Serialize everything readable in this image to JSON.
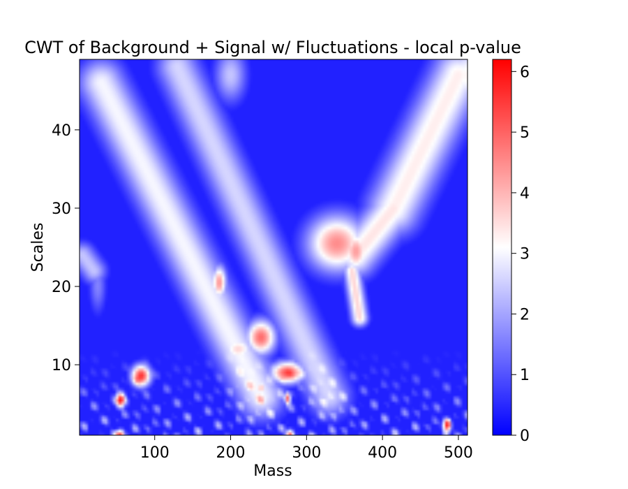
{
  "chart_data": {
    "type": "heatmap",
    "title": "CWT of Background + Signal w/ Fluctuations - local p-value",
    "xlabel": "Mass",
    "ylabel": "Scales",
    "xlim": [
      1,
      512
    ],
    "ylim": [
      1,
      49
    ],
    "x_ticks": [
      100,
      200,
      300,
      400,
      500
    ],
    "y_ticks": [
      10,
      20,
      30,
      40
    ],
    "colorbar": {
      "range": [
        0,
        6.2
      ],
      "ticks": [
        0,
        1,
        2,
        3,
        4,
        5,
        6
      ],
      "colormap": [
        "#0000ff",
        "#ffffff",
        "#ff0000"
      ],
      "colormap_center": 3.1
    },
    "background_level": 0.4,
    "grid": false,
    "features": [
      {
        "type": "ridge",
        "from": [
          30,
          46
        ],
        "to": [
          240,
          6
        ],
        "value": 3.0,
        "width": 22
      },
      {
        "type": "ridge",
        "from": [
          130,
          48
        ],
        "to": [
          330,
          6
        ],
        "value": 2.6,
        "width": 20
      },
      {
        "type": "ridge",
        "from": [
          500,
          47
        ],
        "to": [
          415,
          30
        ],
        "value": 3.3,
        "width": 25
      },
      {
        "type": "ridge",
        "from": [
          415,
          30
        ],
        "to": [
          365,
          24
        ],
        "value": 3.4,
        "width": 20
      },
      {
        "type": "ridge",
        "from": [
          360,
          22
        ],
        "to": [
          370,
          16
        ],
        "value": 3.6,
        "width": 8
      },
      {
        "type": "ridge",
        "from": [
          5,
          24
        ],
        "to": [
          20,
          22
        ],
        "value": 2.4,
        "width": 12
      },
      {
        "type": "blob",
        "x": 340,
        "y": 25.5,
        "sx": 28,
        "sy": 2.6,
        "value": 4.5
      },
      {
        "type": "blob",
        "x": 365,
        "y": 24.5,
        "sx": 12,
        "sy": 2.0,
        "value": 4.3
      },
      {
        "type": "blob",
        "x": 185,
        "y": 20.5,
        "sx": 7,
        "sy": 1.6,
        "value": 4.4
      },
      {
        "type": "blob",
        "x": 240,
        "y": 13.5,
        "sx": 14,
        "sy": 1.6,
        "value": 4.9
      },
      {
        "type": "blob",
        "x": 210,
        "y": 12.0,
        "sx": 16,
        "sy": 1.2,
        "value": 3.6
      },
      {
        "type": "blob",
        "x": 275,
        "y": 9.0,
        "sx": 16,
        "sy": 1.0,
        "value": 5.3
      },
      {
        "type": "blob",
        "x": 82,
        "y": 8.6,
        "sx": 9,
        "sy": 1.0,
        "value": 5.6
      },
      {
        "type": "blob",
        "x": 55,
        "y": 5.5,
        "sx": 4.5,
        "sy": 0.7,
        "value": 6.0
      },
      {
        "type": "blob",
        "x": 275,
        "y": 5.7,
        "sx": 3,
        "sy": 0.6,
        "value": 5.0
      },
      {
        "type": "blob",
        "x": 485,
        "y": 2.2,
        "sx": 4,
        "sy": 0.6,
        "value": 5.4
      },
      {
        "type": "blob",
        "x": 55,
        "y": 1.0,
        "sx": 4,
        "sy": 0.5,
        "value": 5.5
      },
      {
        "type": "blob",
        "x": 278,
        "y": 1.0,
        "sx": 4,
        "sy": 0.5,
        "value": 5.3
      },
      {
        "type": "blob",
        "x": 240,
        "y": 7.0,
        "sx": 6,
        "sy": 0.8,
        "value": 3.8
      },
      {
        "type": "blob",
        "x": 25,
        "y": 20.0,
        "sx": 8,
        "sy": 2.5,
        "value": 1.6
      },
      {
        "type": "blob",
        "x": 510,
        "y": 47.0,
        "sx": 20,
        "sy": 3.0,
        "value": 3.2
      },
      {
        "type": "blob",
        "x": 200,
        "y": 47.0,
        "sx": 15,
        "sy": 2.5,
        "value": 2.4
      }
    ],
    "small_scale_noise": {
      "scale_max": 12,
      "amplitude": 2.6
    }
  }
}
